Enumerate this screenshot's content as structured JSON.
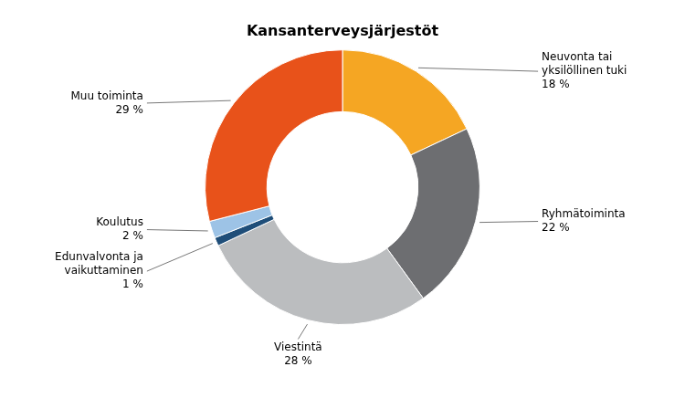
{
  "chart_data": {
    "type": "doughnut",
    "title": "Kansanterveysjärjestöt",
    "categories": [
      "Neuvonta tai\nyksilöllinen tuki\n18 %",
      "Ryhmätoiminta\n22 %",
      "Viestintä\n28 %",
      "Edunvalvonta ja\nvaikuttaminen\n1 %",
      "Koulutus\n2 %",
      "Muu toiminta\n29 %"
    ],
    "values": [
      18,
      22,
      28,
      1,
      2,
      29
    ],
    "colors": [
      "#F5A623",
      "#6D6E71",
      "#BBBDBF",
      "#1F4E79",
      "#9DC3E6",
      "#E8521A"
    ]
  }
}
